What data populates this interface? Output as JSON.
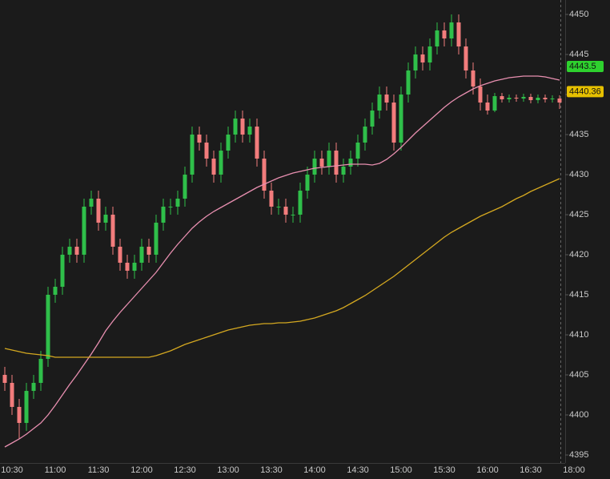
{
  "chart_data": {
    "type": "candlestick",
    "categories": [
      null,
      "10:30",
      null,
      null,
      null,
      null,
      null,
      "11:00",
      null,
      null,
      null,
      null,
      null,
      "11:30",
      null,
      null,
      null,
      null,
      null,
      "12:00",
      null,
      null,
      null,
      null,
      null,
      "12:30",
      null,
      null,
      null,
      null,
      null,
      "13:00",
      null,
      null,
      null,
      null,
      null,
      "13:30",
      null,
      null,
      null,
      null,
      null,
      "14:00",
      null,
      null,
      null,
      null,
      null,
      "14:30",
      null,
      null,
      null,
      null,
      null,
      "15:00",
      null,
      null,
      null,
      null,
      null,
      "15:30",
      null,
      null,
      null,
      null,
      null,
      "16:00",
      null,
      null,
      null,
      null,
      null,
      "16:30",
      null,
      null,
      null,
      null,
      null,
      "18:00"
    ],
    "open": [
      4405,
      4404,
      4401,
      4399,
      4403,
      4404,
      4407,
      4415,
      4416,
      4420,
      4421,
      4420,
      4426,
      4427,
      4424,
      4425,
      4421,
      4419,
      4418,
      4419,
      4421,
      4420,
      4424,
      4426,
      4426,
      4427,
      4430,
      4435,
      4434,
      4432,
      4430,
      4433,
      4435,
      4437,
      4435,
      4436,
      4432,
      4428,
      4426,
      4426,
      4425,
      4425,
      4428,
      4430,
      4432,
      4431,
      4433,
      4430,
      4431,
      4432,
      4434,
      4436,
      4438,
      4440,
      4439,
      4434,
      4440,
      4443,
      4445,
      4444,
      4446,
      4448,
      4447,
      4449,
      4446,
      4443,
      4441,
      4439,
      4438,
      4439.8,
      4439.4,
      4439.6,
      4439.5,
      4439.7,
      4439.3,
      4439.6,
      4439.4,
      4439.5,
      null,
      null
    ],
    "high": [
      4406,
      4405,
      4402,
      4404,
      4405,
      4408,
      4416,
      4417,
      4421,
      4422,
      4422,
      4427,
      4428,
      4428,
      4426,
      4426,
      4422,
      4420,
      4420,
      4422,
      4422,
      4425,
      4427,
      4427,
      4428,
      4431,
      4436,
      4436,
      4435,
      4433,
      4434,
      4436,
      4438,
      4438,
      4437,
      4437,
      4433,
      4429,
      4427,
      4427,
      4426,
      4429,
      4431,
      4433,
      4433,
      4434,
      4434,
      4432,
      4433,
      4435,
      4437,
      4439,
      4441,
      4441,
      4440,
      4441,
      4444,
      4446,
      4446,
      4447,
      4449,
      4449,
      4450,
      4450,
      4447,
      4444,
      4442,
      4440,
      4440.2,
      4440.2,
      4440,
      4440,
      4440.1,
      4440.1,
      4440,
      4440,
      4439.9,
      4439.9,
      null,
      null
    ],
    "low": [
      4403,
      4400,
      4397,
      4398,
      4402,
      4403,
      4406,
      4414,
      4415,
      4419,
      4419,
      4419,
      4425,
      4423,
      4423,
      4420,
      4418,
      4417,
      4417,
      4418,
      4419,
      4419,
      4423,
      4425,
      4425,
      4426,
      4429,
      4433,
      4431,
      4429,
      4429,
      4432,
      4434,
      4434,
      4434,
      4431,
      4427,
      4425,
      4425,
      4424,
      4424,
      4424,
      4427,
      4429,
      4430,
      4430,
      4429,
      4429,
      4430,
      4431,
      4433,
      4435,
      4437,
      4438,
      4433,
      4433,
      4439,
      4442,
      4443,
      4443,
      4445,
      4446,
      4446,
      4445,
      4442,
      4440,
      4438,
      4437.5,
      4437.8,
      4439,
      4439,
      4439.1,
      4439.1,
      4438.9,
      4438.9,
      4439,
      4439,
      4438.2,
      null,
      null
    ],
    "close": [
      4404,
      4401,
      4399,
      4403,
      4404,
      4407,
      4415,
      4416,
      4420,
      4421,
      4420,
      4426,
      4427,
      4424,
      4425,
      4421,
      4419,
      4418,
      4419,
      4421,
      4420,
      4424,
      4426,
      4426,
      4427,
      4430,
      4435,
      4434,
      4432,
      4430,
      4433,
      4435,
      4437,
      4435,
      4436,
      4432,
      4428,
      4426,
      4426,
      4425,
      4425,
      4428,
      4430,
      4432,
      4431,
      4433,
      4430,
      4431,
      4432,
      4434,
      4436,
      4438,
      4440,
      4439,
      4434,
      4440,
      4443,
      4445,
      4444,
      4446,
      4448,
      4447,
      4449,
      4446,
      4443,
      4441,
      4439,
      4438,
      4439.8,
      4439.4,
      4439.6,
      4439.5,
      4439.7,
      4439.3,
      4439.6,
      4439.4,
      4439.5,
      4439,
      null,
      null
    ],
    "up_color": "#2fbf4a",
    "down_color": "#f27c7c",
    "lines": [
      {
        "color": "#e88fb0",
        "values": [
          4396.0,
          4396.5,
          4397.0,
          4397.6,
          4398.3,
          4399.0,
          4400.0,
          4401.2,
          4402.5,
          4403.8,
          4405.0,
          4406.3,
          4407.6,
          4409.0,
          4410.5,
          4411.7,
          4412.8,
          4413.8,
          4414.8,
          4415.8,
          4416.8,
          4417.8,
          4419.0,
          4420.2,
          4421.3,
          4422.3,
          4423.3,
          4424.1,
          4424.8,
          4425.4,
          4425.9,
          4426.4,
          4426.9,
          4427.4,
          4427.9,
          4428.4,
          4428.8,
          4429.2,
          4429.6,
          4429.9,
          4430.2,
          4430.4,
          4430.6,
          4430.8,
          4430.9,
          4431.0,
          4431.1,
          4431.2,
          4431.3,
          4431.3,
          4431.3,
          4431.2,
          4431.4,
          4431.9,
          4432.6,
          4433.4,
          4434.3,
          4435.2,
          4436.0,
          4436.8,
          4437.6,
          4438.4,
          4439.1,
          4439.7,
          4440.2,
          4440.7,
          4441.1,
          4441.4,
          4441.7,
          4441.9,
          4442.1,
          4442.2,
          4442.3,
          4442.3,
          4442.3,
          4442.2,
          4442.0,
          4441.8,
          null,
          null
        ]
      },
      {
        "color": "#d4a820",
        "values": [
          4408.3,
          4408.1,
          4407.9,
          4407.7,
          4407.6,
          4407.5,
          4407.4,
          4407.2,
          4407.2,
          4407.2,
          4407.2,
          4407.2,
          4407.2,
          4407.2,
          4407.2,
          4407.2,
          4407.2,
          4407.2,
          4407.2,
          4407.2,
          4407.2,
          4407.4,
          4407.7,
          4408.0,
          4408.4,
          4408.8,
          4409.1,
          4409.4,
          4409.7,
          4410.0,
          4410.3,
          4410.6,
          4410.8,
          4411.0,
          4411.2,
          4411.3,
          4411.4,
          4411.4,
          4411.5,
          4411.5,
          4411.6,
          4411.7,
          4411.9,
          4412.1,
          4412.4,
          4412.7,
          4413.0,
          4413.4,
          4413.9,
          4414.4,
          4414.9,
          4415.5,
          4416.1,
          4416.7,
          4417.3,
          4418.0,
          4418.7,
          4419.4,
          4420.1,
          4420.8,
          4421.5,
          4422.2,
          4422.8,
          4423.3,
          4423.8,
          4424.3,
          4424.8,
          4425.2,
          4425.6,
          4426.0,
          4426.5,
          4427.0,
          4427.4,
          4427.9,
          4428.3,
          4428.7,
          4429.1,
          4429.5,
          null,
          null
        ]
      }
    ],
    "price_labels": [
      {
        "value": 4443.5,
        "color": "#2ed12e"
      },
      {
        "value": 4440.36,
        "color": "#e6c000"
      }
    ],
    "ylim": [
      4394,
      4451.8
    ],
    "yticks": [
      4395,
      4400,
      4405,
      4410,
      4415,
      4420,
      4425,
      4430,
      4435,
      4440,
      4445,
      4450
    ]
  }
}
